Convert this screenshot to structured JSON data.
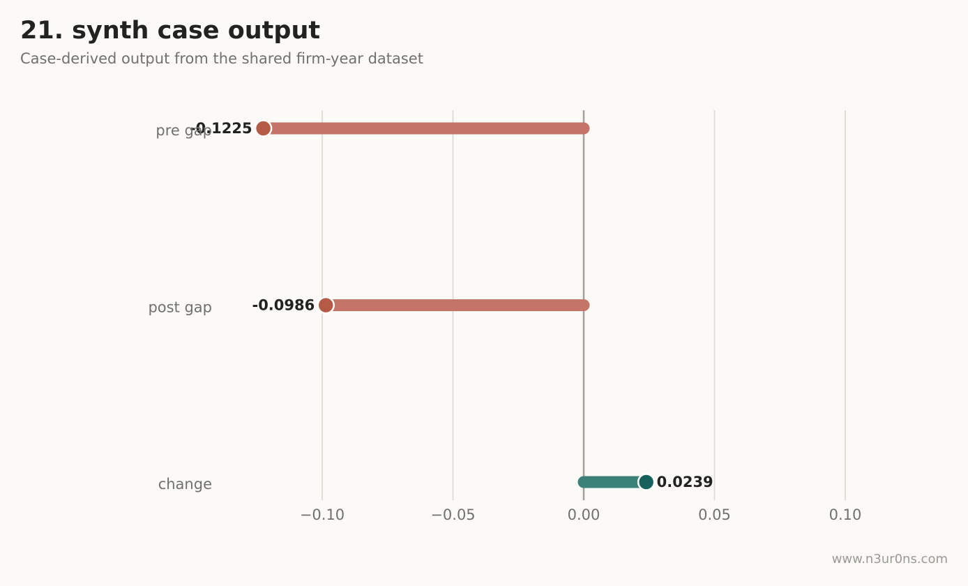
{
  "title": "21. synth case output",
  "subtitle": "Case-derived output from the shared firm-year dataset",
  "watermark": "www.n3ur0ns.com",
  "colors": {
    "negative_bar": "#c47567",
    "negative_dot": "#b65a48",
    "positive_bar": "#3b8079",
    "positive_dot": "#17605c",
    "grid": "#dcdad5",
    "zero_line": "#a3a19b"
  },
  "chart_data": {
    "type": "bar",
    "orientation": "horizontal",
    "style": "lollipop",
    "categories": [
      "pre gap",
      "post gap",
      "change"
    ],
    "values": [
      -0.1225,
      -0.0986,
      0.0239
    ],
    "value_labels": [
      "-0.1225",
      "-0.0986",
      "0.0239"
    ],
    "xlim": [
      -0.14,
      0.14
    ],
    "xticks": [
      -0.1,
      -0.05,
      0.0,
      0.05,
      0.1
    ],
    "xtick_labels": [
      "−0.10",
      "−0.05",
      "0.00",
      "0.05",
      "0.10"
    ],
    "grid": "vertical",
    "xlabel": "",
    "ylabel": ""
  }
}
